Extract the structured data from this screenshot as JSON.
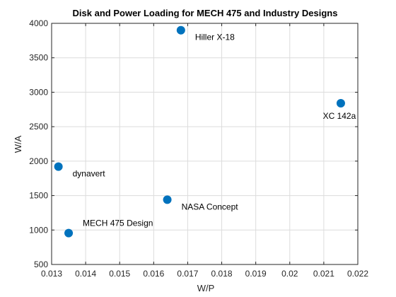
{
  "chart_data": {
    "type": "scatter",
    "title": "Disk and Power Loading for MECH 475 and Industry Designs",
    "xlabel": "W/P",
    "ylabel": "W/A",
    "xlim": [
      0.013,
      0.022
    ],
    "ylim": [
      500,
      4000
    ],
    "xticks": [
      0.013,
      0.014,
      0.015,
      0.016,
      0.017,
      0.018,
      0.019,
      0.02,
      0.021,
      0.022
    ],
    "xtick_labels": [
      "0.013",
      "0.014",
      "0.015",
      "0.016",
      "0.017",
      "0.018",
      "0.019",
      "0.02",
      "0.021",
      "0.022"
    ],
    "yticks": [
      500,
      1000,
      1500,
      2000,
      2500,
      3000,
      3500,
      4000
    ],
    "ytick_labels": [
      "500",
      "1000",
      "1500",
      "2000",
      "2500",
      "3000",
      "3500",
      "4000"
    ],
    "grid": true,
    "marker_color": "#0072BD",
    "points": [
      {
        "label": "Hiller X-18",
        "x": 0.0168,
        "y": 3900,
        "label_position": "lower-right"
      },
      {
        "label": "XC 142a",
        "x": 0.0215,
        "y": 2840,
        "label_position": "below"
      },
      {
        "label": "dynavert",
        "x": 0.0132,
        "y": 1920,
        "label_position": "lower-right"
      },
      {
        "label": "NASA Concept",
        "x": 0.0164,
        "y": 1440,
        "label_position": "lower-right"
      },
      {
        "label": "MECH 475 Design",
        "x": 0.0135,
        "y": 955,
        "label_position": "upper-right"
      }
    ]
  }
}
